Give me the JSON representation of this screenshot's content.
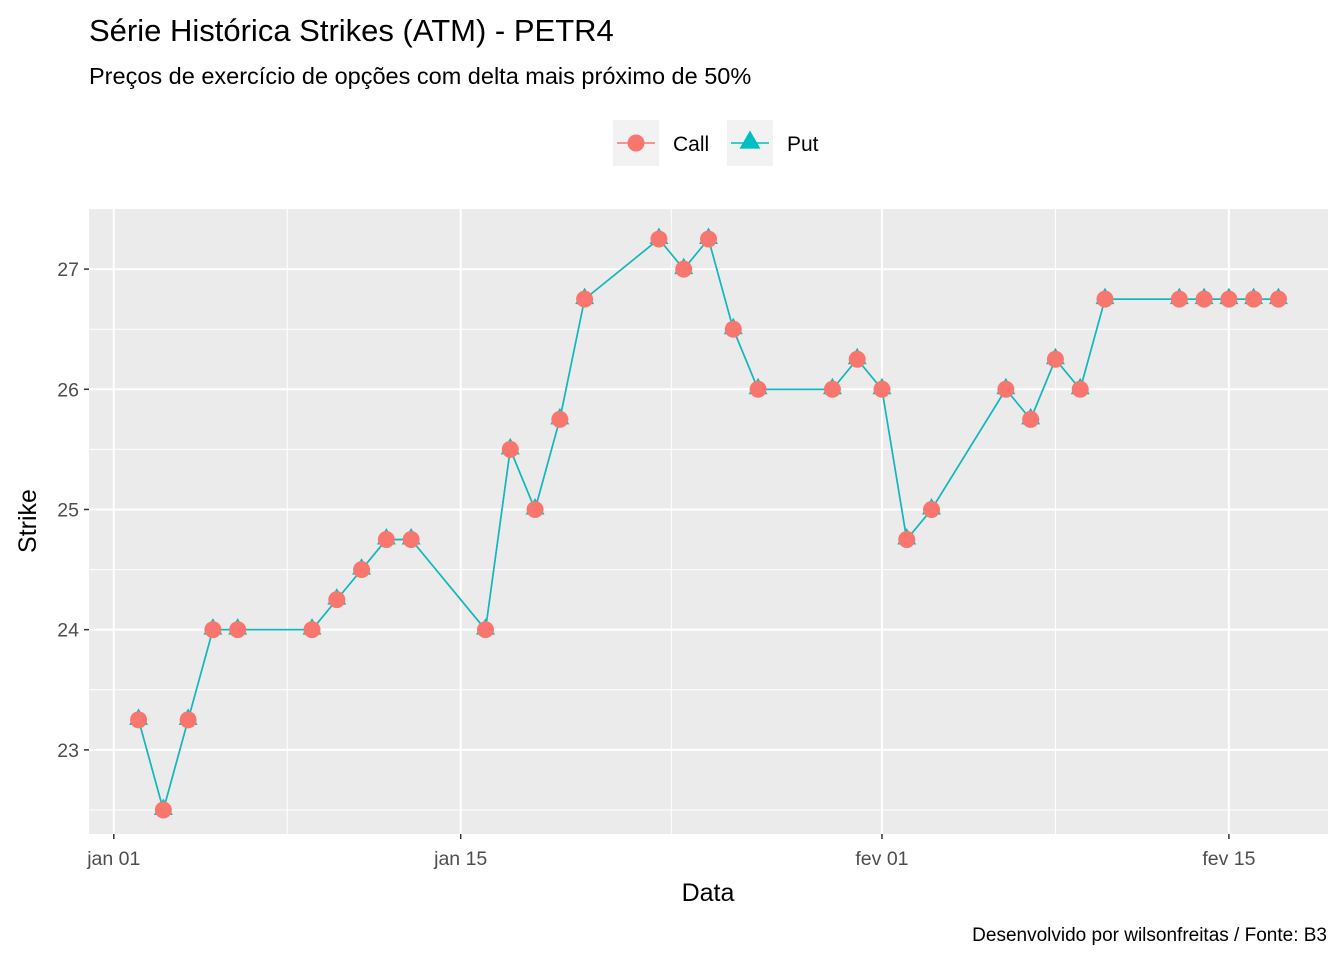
{
  "chart_data": {
    "type": "line",
    "title": "Série Histórica Strikes (ATM) - PETR4",
    "subtitle": "Preços de exercício de opções com delta mais próximo de 50%",
    "xlabel": "Data",
    "ylabel": "Strike",
    "caption": "Desenvolvido por wilsonfreitas / Fonte: B3",
    "legend_position": "top",
    "grid": true,
    "x_ticks": [
      {
        "date": "2020-01-01",
        "label": "jan 01"
      },
      {
        "date": "2020-01-15",
        "label": "jan 15"
      },
      {
        "date": "2020-02-01",
        "label": "fev 01"
      },
      {
        "date": "2020-02-15",
        "label": "fev 15"
      }
    ],
    "y_ticks": [
      23,
      24,
      25,
      26,
      27
    ],
    "xlim": [
      "2019-12-31",
      "2020-02-19"
    ],
    "ylim": [
      22.3,
      27.5
    ],
    "series": [
      {
        "name": "Call",
        "color": "#F8766D",
        "marker": "circle",
        "x": [
          "2020-01-02",
          "2020-01-03",
          "2020-01-04",
          "2020-01-05",
          "2020-01-06",
          "2020-01-09",
          "2020-01-10",
          "2020-01-11",
          "2020-01-12",
          "2020-01-13",
          "2020-01-16",
          "2020-01-17",
          "2020-01-18",
          "2020-01-19",
          "2020-01-20",
          "2020-01-23",
          "2020-01-24",
          "2020-01-25",
          "2020-01-26",
          "2020-01-27",
          "2020-01-30",
          "2020-01-31",
          "2020-02-01",
          "2020-02-02",
          "2020-02-03",
          "2020-02-06",
          "2020-02-07",
          "2020-02-08",
          "2020-02-09",
          "2020-02-10",
          "2020-02-13",
          "2020-02-14",
          "2020-02-15",
          "2020-02-16",
          "2020-02-17"
        ],
        "y": [
          23.25,
          22.5,
          23.25,
          24.0,
          24.0,
          24.0,
          24.25,
          24.5,
          24.75,
          24.75,
          24.0,
          25.5,
          25.0,
          25.75,
          26.75,
          27.25,
          27.0,
          27.25,
          26.5,
          26.0,
          26.0,
          26.25,
          26.0,
          24.75,
          25.0,
          26.0,
          25.75,
          26.25,
          26.0,
          26.75,
          26.75,
          26.75,
          26.75,
          26.75,
          26.75
        ]
      },
      {
        "name": "Put",
        "color": "#00BFC4",
        "marker": "triangle",
        "x": [
          "2020-01-02",
          "2020-01-03",
          "2020-01-04",
          "2020-01-05",
          "2020-01-06",
          "2020-01-09",
          "2020-01-10",
          "2020-01-11",
          "2020-01-12",
          "2020-01-13",
          "2020-01-16",
          "2020-01-17",
          "2020-01-18",
          "2020-01-19",
          "2020-01-20",
          "2020-01-23",
          "2020-01-24",
          "2020-01-25",
          "2020-01-26",
          "2020-01-27",
          "2020-01-30",
          "2020-01-31",
          "2020-02-01",
          "2020-02-02",
          "2020-02-03",
          "2020-02-06",
          "2020-02-07",
          "2020-02-08",
          "2020-02-09",
          "2020-02-10",
          "2020-02-13",
          "2020-02-14",
          "2020-02-15",
          "2020-02-16",
          "2020-02-17"
        ],
        "y": [
          23.25,
          22.5,
          23.25,
          24.0,
          24.0,
          24.0,
          24.25,
          24.5,
          24.75,
          24.75,
          24.0,
          25.5,
          25.0,
          25.75,
          26.75,
          27.25,
          27.0,
          27.25,
          26.5,
          26.0,
          26.0,
          26.25,
          26.0,
          24.75,
          25.0,
          26.0,
          25.75,
          26.25,
          26.0,
          26.75,
          26.75,
          26.75,
          26.75,
          26.75,
          26.75
        ]
      }
    ]
  }
}
